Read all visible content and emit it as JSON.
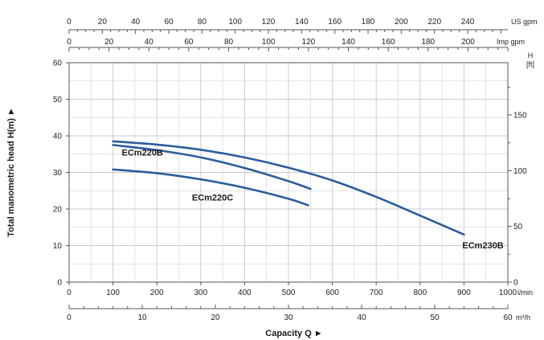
{
  "chart_data": {
    "type": "line",
    "title": "",
    "xlabel": "Capacity Q ►",
    "ylabel": "Total manometric head H(m) ►",
    "xlim": [
      0,
      1000
    ],
    "ylim": [
      0,
      60
    ],
    "grid": true,
    "colors": {
      "series": "#2a5e9c",
      "grid": "#c8c8c8",
      "frame": "#555555",
      "text": "#222222"
    },
    "axes": {
      "x_main": {
        "unit": "l/min",
        "ticks": [
          "0",
          "100",
          "200",
          "300",
          "400",
          "500",
          "600",
          "700",
          "800",
          "900",
          "1000"
        ]
      },
      "x_m3h": {
        "unit": "m³/h",
        "ticks": [
          "0",
          "10",
          "20",
          "30",
          "40",
          "50",
          "60"
        ]
      },
      "x_us_gpm": {
        "unit": "US gpm",
        "ticks": [
          "0",
          "20",
          "40",
          "60",
          "80",
          "100",
          "120",
          "140",
          "160",
          "180",
          "200",
          "220",
          "240"
        ]
      },
      "x_imp_gpm": {
        "unit": "Imp gpm",
        "ticks": [
          "0",
          "20",
          "40",
          "60",
          "80",
          "100",
          "120",
          "140",
          "160",
          "180",
          "200"
        ]
      },
      "y_main": {
        "ticks": [
          "0",
          "10",
          "20",
          "30",
          "40",
          "50",
          "60"
        ]
      },
      "y_ft": {
        "unit_top": "H",
        "unit_bottom": "[ft]",
        "ticks": [
          "0",
          "50",
          "100",
          "150"
        ]
      }
    },
    "series": [
      {
        "name": "ECm230B",
        "x": [
          100,
          200,
          300,
          400,
          500,
          600,
          700,
          800,
          900
        ],
        "y": [
          38.5,
          37.6,
          36.2,
          34.1,
          31.3,
          27.8,
          23.3,
          18.2,
          13
        ]
      },
      {
        "name": "ECm220B",
        "x": [
          100,
          200,
          300,
          400,
          500,
          550
        ],
        "y": [
          37.5,
          36.1,
          34.1,
          31.2,
          27.6,
          25.5
        ]
      },
      {
        "name": "ECm220C",
        "x": [
          100,
          200,
          300,
          400,
          500,
          545
        ],
        "y": [
          30.8,
          29.8,
          28.1,
          25.8,
          22.8,
          21
        ]
      }
    ]
  }
}
